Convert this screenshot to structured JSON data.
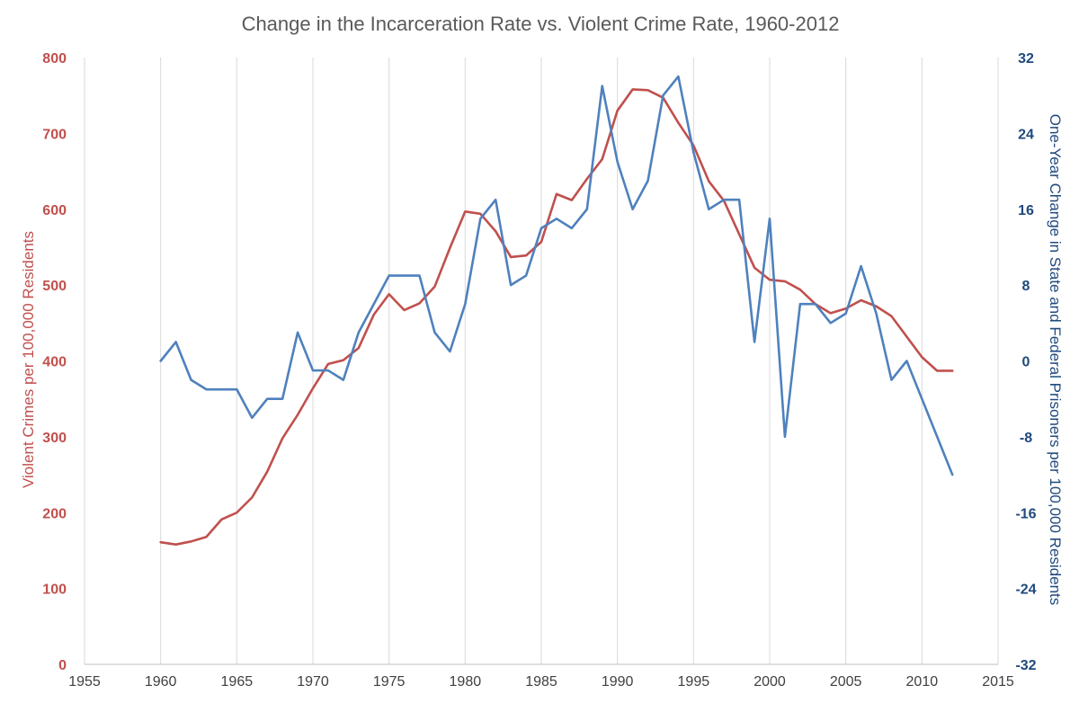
{
  "chart_data": {
    "type": "line",
    "title": "Change in the Incarceration Rate vs. Violent Crime Rate, 1960-2012",
    "xlabel": "",
    "ylabel_left": "Violent Crimes per 100,000 Residents",
    "ylabel_right": "One-Year Change in State and Federal Prisoners per 100,000 Residents",
    "xlim": [
      1955,
      2015
    ],
    "x_ticks": [
      "1955",
      "1960",
      "1965",
      "1970",
      "1975",
      "1980",
      "1985",
      "1990",
      "1995",
      "2000",
      "2005",
      "2010",
      "2015"
    ],
    "ylim_left": [
      0,
      800
    ],
    "y_ticks_left": [
      "0",
      "100",
      "200",
      "300",
      "400",
      "500",
      "600",
      "700",
      "800"
    ],
    "ylim_right": [
      -32,
      32
    ],
    "y_ticks_right": [
      "-32",
      "-24",
      "-16",
      "-8",
      "0",
      "8",
      "16",
      "24",
      "32"
    ],
    "grid": "vertical",
    "colors": {
      "violent": "#c0504d",
      "incarceration": "#4f81bd",
      "left_axis": "#c0504d",
      "right_axis": "#1f497d"
    },
    "series": [
      {
        "name": "Violent Crime Rate",
        "axis": "left",
        "x": [
          1960,
          1961,
          1962,
          1963,
          1964,
          1965,
          1966,
          1967,
          1968,
          1969,
          1970,
          1971,
          1972,
          1973,
          1974,
          1975,
          1976,
          1977,
          1978,
          1979,
          1980,
          1981,
          1982,
          1983,
          1984,
          1985,
          1986,
          1987,
          1988,
          1989,
          1990,
          1991,
          1992,
          1993,
          1994,
          1995,
          1996,
          1997,
          1998,
          1999,
          2000,
          2001,
          2002,
          2003,
          2004,
          2005,
          2006,
          2007,
          2008,
          2009,
          2010,
          2011,
          2012
        ],
        "values": [
          161,
          158,
          162,
          168,
          191,
          200,
          220,
          254,
          298,
          329,
          364,
          396,
          401,
          417,
          461,
          488,
          467,
          476,
          498,
          549,
          597,
          594,
          571,
          537,
          539,
          557,
          620,
          612,
          640,
          666,
          730,
          758,
          757,
          747,
          714,
          684,
          637,
          611,
          567,
          523,
          507,
          505,
          494,
          475,
          463,
          469,
          480,
          472,
          459,
          432,
          405,
          387,
          387
        ]
      },
      {
        "name": "One-Year Change in State and Federal Prisoners per 100,000 Residents",
        "axis": "right",
        "x": [
          1960,
          1961,
          1962,
          1963,
          1964,
          1965,
          1966,
          1967,
          1968,
          1969,
          1970,
          1971,
          1972,
          1973,
          1974,
          1975,
          1976,
          1977,
          1978,
          1979,
          1980,
          1981,
          1982,
          1983,
          1984,
          1985,
          1986,
          1987,
          1988,
          1989,
          1990,
          1991,
          1992,
          1993,
          1994,
          1995,
          1996,
          1997,
          1998,
          1999,
          2000,
          2001,
          2002,
          2003,
          2004,
          2005,
          2006,
          2007,
          2008,
          2009,
          2010,
          2011,
          2012
        ],
        "values": [
          0,
          2,
          -2,
          -3,
          -3,
          -3,
          -6,
          -4,
          -4,
          3,
          -1,
          -1,
          -2,
          3,
          6,
          9,
          9,
          9,
          3,
          1,
          6,
          15,
          17,
          8,
          9,
          14,
          15,
          14,
          16,
          29,
          21,
          16,
          19,
          28,
          30,
          22,
          16,
          17,
          17,
          2,
          15,
          -8,
          6,
          6,
          4,
          5,
          10,
          5,
          -2,
          0,
          -4,
          -8,
          -12
        ]
      }
    ]
  }
}
